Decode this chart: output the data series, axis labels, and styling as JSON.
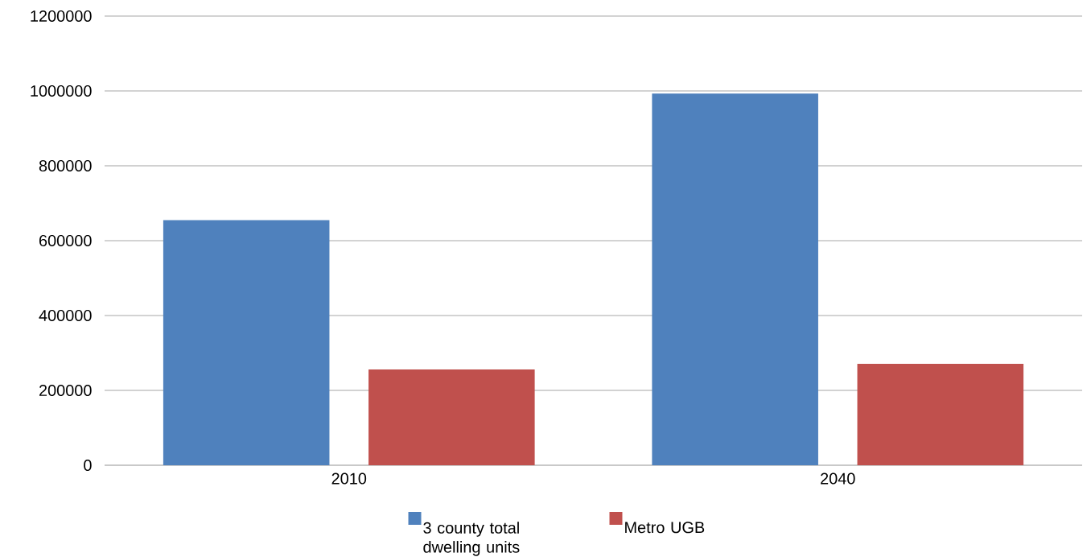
{
  "chart_data": {
    "type": "bar",
    "categories": [
      "2010",
      "2040"
    ],
    "series": [
      {
        "name": "3 county total dwelling units",
        "color": "#4f81bd",
        "values": [
          655000,
          993000
        ]
      },
      {
        "name": "Metro UGB",
        "color": "#c0504d",
        "values": [
          256000,
          271000
        ]
      }
    ],
    "ylim": [
      0,
      1200000
    ],
    "yticks": [
      0,
      200000,
      400000,
      600000,
      800000,
      1000000,
      1200000
    ],
    "grid": "y",
    "legend": "bottom"
  }
}
